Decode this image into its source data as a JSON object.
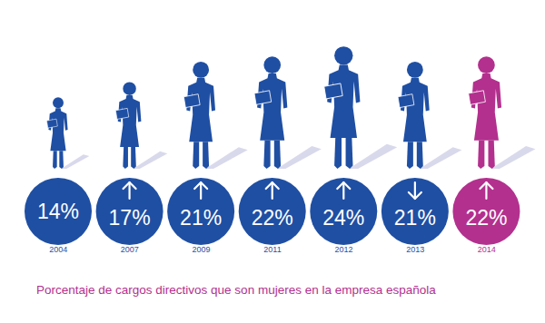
{
  "chart_data": {
    "type": "bar",
    "title": "Porcentaje de cargos directivos que son mujeres en la empresa española",
    "categories": [
      "2004",
      "2007",
      "2009",
      "2011",
      "2012",
      "2013",
      "2014"
    ],
    "values": [
      14,
      17,
      21,
      22,
      24,
      21,
      22
    ],
    "value_labels": [
      "14%",
      "17%",
      "21%",
      "22%",
      "24%",
      "21%",
      "22%"
    ],
    "colors": [
      "#1f4fa3",
      "#1f4fa3",
      "#1f4fa3",
      "#1f4fa3",
      "#1f4fa3",
      "#1f4fa3",
      "#b3308e"
    ],
    "data_labels": true,
    "tick_labels": "x",
    "grid": false
  }
}
